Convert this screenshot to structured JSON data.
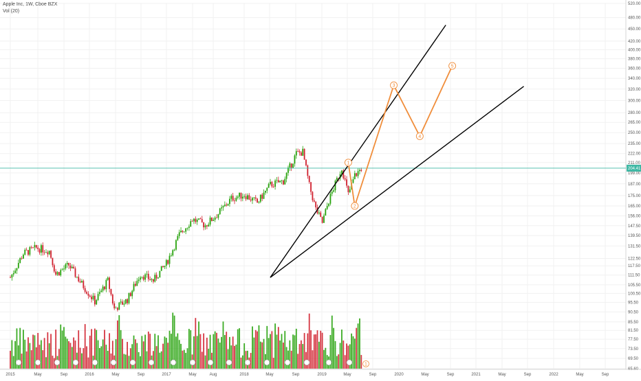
{
  "legend": {
    "symbol": "Apple Inc, 1W, Cboe BZX",
    "volume": "Vol (20)"
  },
  "colors": {
    "up": "#26a20b",
    "down": "#d0202e",
    "wave": "#f08d3a",
    "trendline": "#000000",
    "last_price_line": "#3fb8a4",
    "grid": "#f1f1f1"
  },
  "chart_data": {
    "type": "candlestick",
    "y_scale": "log",
    "ylim": [
      65.6,
      520.0
    ],
    "y_ticks": [
      520.0,
      480.0,
      450.0,
      420.0,
      400.0,
      380.0,
      360.0,
      340.0,
      320.0,
      300.0,
      280.0,
      265.0,
      250.0,
      235.0,
      222.0,
      211.0,
      199.0,
      187.0,
      175.0,
      165.0,
      156.0,
      147.5,
      139.5,
      131.5,
      122.5,
      117.5,
      111.5,
      105.5,
      100.5,
      95.5,
      90.5,
      85.5,
      81.5,
      77.5,
      73.5,
      69.5,
      65.6
    ],
    "x_ticks": [
      "2015",
      "May",
      "Sep",
      "2016",
      "May",
      "Sep",
      "2017",
      "May",
      "Aug",
      "2018",
      "May",
      "Sep",
      "2019",
      "May",
      "Sep",
      "2020",
      "May",
      "Sep",
      "2021",
      "May",
      "Sep",
      "2022",
      "May",
      "Sep"
    ],
    "last_price": 204.41,
    "last_price_label": "204.41",
    "price_path": [
      [
        "2015-01",
        110
      ],
      [
        "2015-03",
        126
      ],
      [
        "2015-05",
        130
      ],
      [
        "2015-07",
        128
      ],
      [
        "2015-08",
        112
      ],
      [
        "2015-10",
        118
      ],
      [
        "2015-12",
        106
      ],
      [
        "2016-02",
        96
      ],
      [
        "2016-04",
        108
      ],
      [
        "2016-05",
        92
      ],
      [
        "2016-07",
        97
      ],
      [
        "2016-09",
        112
      ],
      [
        "2016-11",
        108
      ],
      [
        "2017-01",
        119
      ],
      [
        "2017-03",
        140
      ],
      [
        "2017-05",
        153
      ],
      [
        "2017-07",
        148
      ],
      [
        "2017-09",
        158
      ],
      [
        "2017-11",
        172
      ],
      [
        "2018-01",
        176
      ],
      [
        "2018-03",
        168
      ],
      [
        "2018-05",
        186
      ],
      [
        "2018-07",
        190
      ],
      [
        "2018-09",
        222
      ],
      [
        "2018-10",
        224
      ],
      [
        "2018-11",
        185
      ],
      [
        "2018-12",
        162
      ],
      [
        "2019-01",
        150
      ],
      [
        "2019-02",
        170
      ],
      [
        "2019-04",
        205
      ],
      [
        "2019-05",
        176
      ],
      [
        "2019-06",
        196
      ],
      [
        "2019-07",
        204
      ]
    ],
    "trendlines": [
      {
        "from": [
          "2018-05",
          110
        ],
        "to": [
          "2020-08",
          460
        ]
      },
      {
        "from": [
          "2018-05",
          110
        ],
        "to": [
          "2021-08",
          325
        ]
      }
    ],
    "waves": [
      {
        "label": "1",
        "date": "2019-05",
        "value": 211
      },
      {
        "label": "2",
        "date": "2019-06",
        "value": 165
      },
      {
        "label": "3",
        "date": "2019-12",
        "value": 327
      },
      {
        "label": "4",
        "date": "2020-04",
        "value": 245
      },
      {
        "label": "5",
        "date": "2020-09",
        "value": 365
      }
    ],
    "volume_marker": "1"
  }
}
